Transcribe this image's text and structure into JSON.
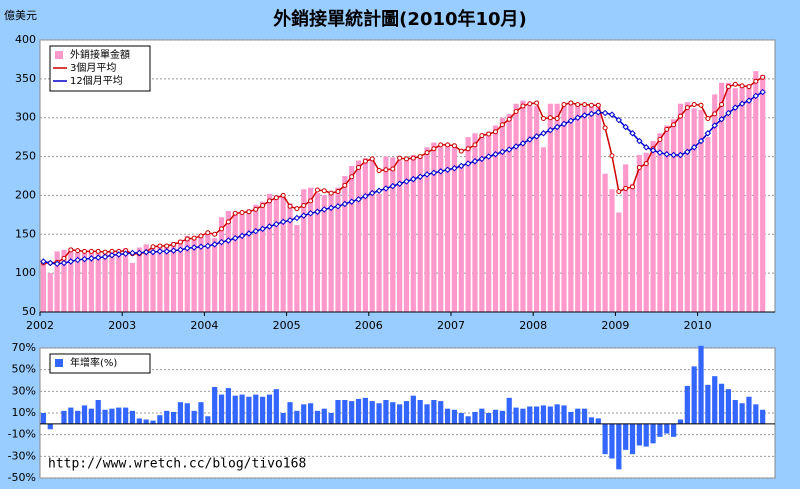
{
  "chart_data": [
    {
      "type": "bar",
      "title": "外銷接單統計圖(2010年10月)",
      "y_label": "億美元",
      "categories": [
        "2002",
        null,
        null,
        null,
        null,
        null,
        null,
        null,
        null,
        null,
        null,
        null,
        "2003",
        null,
        null,
        null,
        null,
        null,
        null,
        null,
        null,
        null,
        null,
        null,
        "2004",
        null,
        null,
        null,
        null,
        null,
        null,
        null,
        null,
        null,
        null,
        null,
        "2005",
        null,
        null,
        null,
        null,
        null,
        null,
        null,
        null,
        null,
        null,
        null,
        "2006",
        null,
        null,
        null,
        null,
        null,
        null,
        null,
        null,
        null,
        null,
        null,
        "2007",
        null,
        null,
        null,
        null,
        null,
        null,
        null,
        null,
        null,
        null,
        null,
        "2008",
        null,
        null,
        null,
        null,
        null,
        null,
        null,
        null,
        null,
        null,
        null,
        "2009",
        null,
        null,
        null,
        null,
        null,
        null,
        null,
        null,
        null,
        null,
        null,
        "2010",
        null,
        null,
        null,
        null,
        null,
        null,
        null,
        null,
        null
      ],
      "ylim": [
        50,
        400
      ],
      "yticks": [
        50,
        100,
        150,
        200,
        250,
        300,
        350,
        400
      ],
      "grid": true,
      "legend": "upper left",
      "series": [
        {
          "name": "外銷接單金額",
          "type": "bar",
          "color": "#ff99cc",
          "values": [
            113,
            100,
            128,
            130,
            132,
            126,
            129,
            128,
            126,
            127,
            130,
            128,
            132,
            113,
            133,
            137,
            132,
            135,
            137,
            140,
            143,
            148,
            145,
            150,
            152,
            145,
            172,
            180,
            178,
            176,
            182,
            188,
            192,
            202,
            200,
            198,
            190,
            162,
            208,
            210,
            203,
            200,
            205,
            210,
            225,
            238,
            245,
            248,
            248,
            202,
            250,
            249,
            245,
            248,
            252,
            250,
            262,
            268,
            262,
            265,
            265,
            240,
            275,
            280,
            275,
            282,
            290,
            300,
            305,
            318,
            322,
            315,
            315,
            262,
            318,
            318,
            316,
            318,
            318,
            315,
            316,
            318,
            228,
            208,
            178,
            240,
            215,
            252,
            255,
            270,
            280,
            290,
            298,
            318,
            320,
            312,
            310,
            275,
            330,
            345,
            345,
            338,
            340,
            342,
            360,
            355
          ]
        },
        {
          "name": "3個月平均",
          "type": "line",
          "marker": "circle",
          "color": "#cc0000",
          "values": [
            113,
            113,
            114,
            119,
            130,
            129,
            128,
            128,
            128,
            127,
            128,
            128,
            129,
            125,
            125,
            127,
            134,
            135,
            135,
            137,
            140,
            144,
            145,
            148,
            152,
            150,
            157,
            166,
            177,
            178,
            179,
            182,
            187,
            193,
            197,
            200,
            186,
            183,
            187,
            193,
            207,
            206,
            203,
            205,
            213,
            224,
            236,
            244,
            247,
            232,
            233,
            234,
            248,
            247,
            248,
            250,
            255,
            260,
            265,
            265,
            264,
            257,
            260,
            265,
            277,
            279,
            282,
            291,
            298,
            308,
            315,
            318,
            319,
            299,
            300,
            299,
            317,
            319,
            317,
            317,
            316,
            316,
            287,
            251,
            205,
            209,
            211,
            236,
            241,
            260,
            272,
            285,
            291,
            302,
            313,
            317,
            316,
            299,
            305,
            317,
            340,
            343,
            341,
            340,
            347,
            352
          ]
        },
        {
          "name": "12個月平均",
          "type": "line",
          "marker": "diamond",
          "color": "#0000cc",
          "values": [
            115,
            113,
            112,
            113,
            115,
            117,
            118,
            119,
            120,
            121,
            123,
            124,
            125,
            126,
            126,
            127,
            127,
            128,
            128,
            129,
            130,
            132,
            133,
            134,
            135,
            137,
            140,
            142,
            145,
            148,
            151,
            154,
            157,
            160,
            163,
            166,
            168,
            171,
            174,
            177,
            179,
            182,
            184,
            186,
            189,
            192,
            195,
            199,
            203,
            206,
            209,
            212,
            215,
            218,
            221,
            224,
            227,
            229,
            231,
            233,
            235,
            238,
            241,
            244,
            247,
            250,
            253,
            256,
            259,
            263,
            267,
            272,
            276,
            280,
            284,
            288,
            292,
            296,
            300,
            303,
            305,
            307,
            306,
            304,
            297,
            288,
            280,
            270,
            262,
            258,
            255,
            253,
            252,
            252,
            256,
            262,
            270,
            280,
            290,
            298,
            306,
            313,
            318,
            322,
            328,
            333
          ]
        }
      ]
    },
    {
      "type": "bar",
      "annotation": "http://www.wretch.cc/blog/tivo168",
      "ylim": [
        -50,
        70
      ],
      "yticks": [
        {
          "value": 70,
          "label": "70%"
        },
        {
          "value": 50,
          "label": "50%"
        },
        {
          "value": 30,
          "label": "30%"
        },
        {
          "value": 10,
          "label": "10%"
        },
        {
          "value": -10,
          "label": "-10%"
        },
        {
          "value": -30,
          "label": "-30%"
        },
        {
          "value": -50,
          "label": "-50%"
        }
      ],
      "grid": true,
      "legend": "upper left",
      "series": [
        {
          "name": "年增率(%)",
          "type": "bar",
          "color": "#3366ff",
          "values": [
            10,
            -5,
            0,
            12,
            15,
            12,
            17,
            14,
            22,
            13,
            14,
            15,
            15,
            12,
            5,
            4,
            3,
            8,
            12,
            11,
            20,
            19,
            12,
            20,
            7,
            34,
            27,
            33,
            26,
            27,
            25,
            27,
            25,
            27,
            32,
            10,
            20,
            12,
            18,
            19,
            12,
            14,
            10,
            22,
            22,
            21,
            23,
            24,
            21,
            19,
            22,
            20,
            18,
            21,
            26,
            22,
            18,
            22,
            21,
            14,
            13,
            10,
            7,
            11,
            14,
            10,
            13,
            12,
            24,
            15,
            14,
            16,
            16,
            17,
            16,
            18,
            17,
            11,
            14,
            14,
            6,
            5,
            -28,
            -32,
            -42,
            -24,
            -28,
            -20,
            -21,
            -18,
            -12,
            -9,
            -12,
            4,
            35,
            53,
            72,
            36,
            44,
            37,
            32,
            22,
            19,
            25,
            18,
            13
          ]
        }
      ]
    }
  ]
}
